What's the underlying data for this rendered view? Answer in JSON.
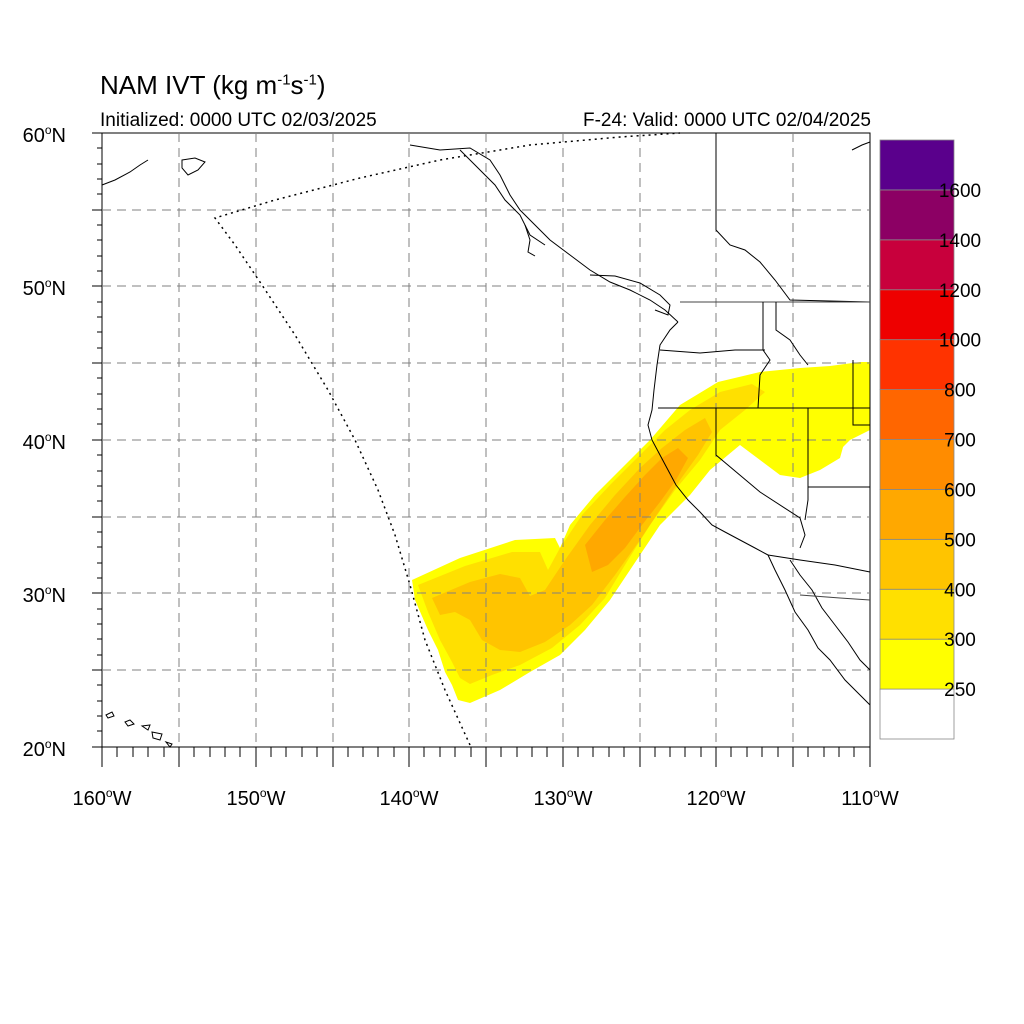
{
  "header": {
    "title_main": "NAM IVT (kg m",
    "title_exp1": "-1",
    "title_mid": "s",
    "title_exp2": "-1",
    "title_end": ")",
    "initialized": "Initialized: 0000 UTC 02/03/2025",
    "valid": "F-24: Valid: 0000 UTC 02/04/2025"
  },
  "map": {
    "lat_labels": [
      {
        "deg": "60",
        "hemi": "N"
      },
      {
        "deg": "50",
        "hemi": "N"
      },
      {
        "deg": "40",
        "hemi": "N"
      },
      {
        "deg": "30",
        "hemi": "N"
      },
      {
        "deg": "20",
        "hemi": "N"
      }
    ],
    "lon_labels": [
      {
        "deg": "160",
        "hemi": "W"
      },
      {
        "deg": "150",
        "hemi": "W"
      },
      {
        "deg": "140",
        "hemi": "W"
      },
      {
        "deg": "130",
        "hemi": "W"
      },
      {
        "deg": "120",
        "hemi": "W"
      },
      {
        "deg": "110",
        "hemi": "W"
      }
    ],
    "extent": {
      "lon_min": -160,
      "lon_max": -110,
      "lat_min": 20,
      "lat_max": 60
    }
  },
  "colorbar": {
    "levels": [
      "250",
      "300",
      "400",
      "500",
      "600",
      "700",
      "800",
      "1000",
      "1200",
      "1400",
      "1600"
    ],
    "colors": [
      "#ffffff",
      "#ffff00",
      "#ffe000",
      "#ffc400",
      "#ffa800",
      "#ff8c00",
      "#ff6600",
      "#ff3300",
      "#ee0000",
      "#c8003c",
      "#8c0064",
      "#5a008c"
    ]
  }
}
